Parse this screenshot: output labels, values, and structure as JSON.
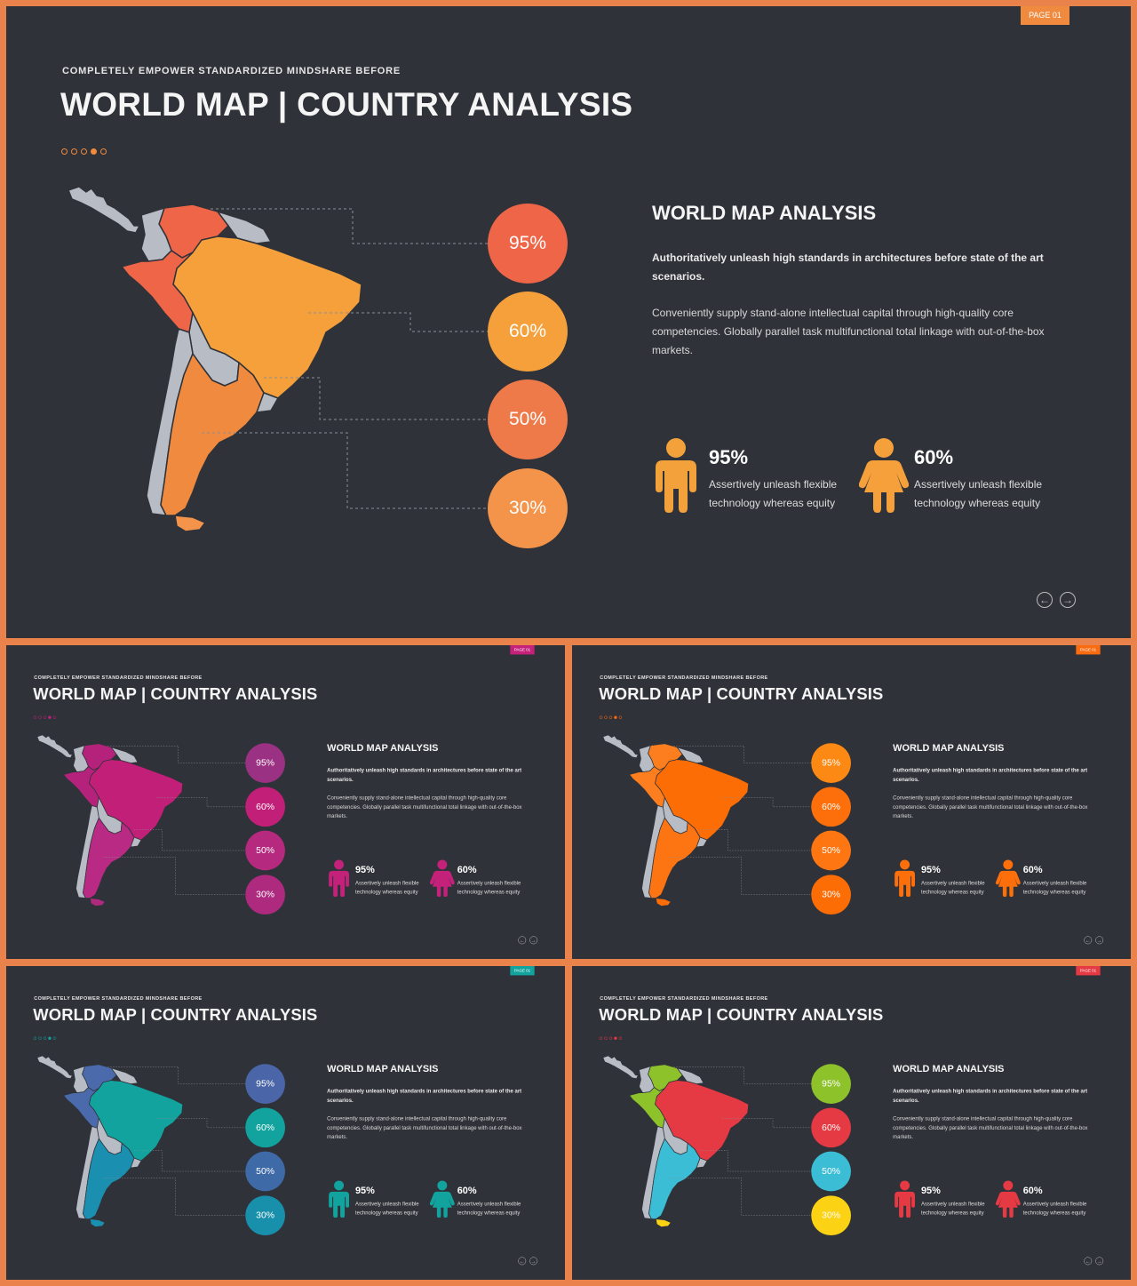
{
  "slides": [
    {
      "accent": "#ef8a3e",
      "colors": [
        "#ee6548",
        "#f5a03a",
        "#ef8a3e",
        "#f3944a"
      ],
      "circles": [
        "#ee6548",
        "#f6a03b",
        "#ee7a4a",
        "#f3944a"
      ],
      "male": "#f2a13b",
      "female": "#f5a03a"
    },
    {
      "accent": "#c4217a",
      "colors": [
        "#b4227c",
        "#c21f78",
        "#b92a84",
        "#ad2a7e"
      ],
      "circles": [
        "#9b3182",
        "#c21f78",
        "#b5297e",
        "#ad2a7e"
      ],
      "male": "#c4217a",
      "female": "#c4217a"
    },
    {
      "accent": "#fb6b10",
      "colors": [
        "#fd7e1e",
        "#fd6d05",
        "#fd7412",
        "#fd6d05"
      ],
      "circles": [
        "#fc8913",
        "#fd6f0a",
        "#fd7612",
        "#fd6d05"
      ],
      "male": "#fd6f0a",
      "female": "#fd6f0a"
    },
    {
      "accent": "#12a39e",
      "colors": [
        "#4a6aac",
        "#12a39e",
        "#1b8fb0",
        "#1b8fb0"
      ],
      "circles": [
        "#4a65a8",
        "#12a39e",
        "#3f6aa8",
        "#1990ab"
      ],
      "male": "#12a39e",
      "female": "#12a39e"
    },
    {
      "accent": "#e53943",
      "colors": [
        "#8dc22b",
        "#e53943",
        "#3bbdd6",
        "#fcd214"
      ],
      "circles": [
        "#8dc22b",
        "#e53943",
        "#3bbdd6",
        "#fcd214"
      ],
      "male": "#e53943",
      "female": "#e53943"
    }
  ],
  "content": {
    "tagline": "COMPLETELY  EMPOWER  STANDARDIZED  MINDSHARE  BEFORE",
    "title": "WORLD MAP | COUNTRY ANALYSIS",
    "page_badge": "PAGE 01",
    "section_title": "WORLD MAP ANALYSIS",
    "lead": "Authoritatively unleash high standards in architectures before state of the art scenarios.",
    "body": "Conveniently supply stand-alone intellectual capital through high-quality core competencies.  Globally parallel task multifunctional total linkage with out-of-the-box markets.",
    "circle_values": [
      "95%",
      "60%",
      "50%",
      "30%"
    ],
    "stats": [
      {
        "value": "95%",
        "desc": "Assertively unleash flexible technology whereas equity",
        "icon": "male-icon"
      },
      {
        "value": "60%",
        "desc": "Assertively unleash flexible technology whereas equity",
        "icon": "female-icon"
      }
    ],
    "nav": {
      "prev": "previous-arrow-icon",
      "next": "next-arrow-icon"
    }
  }
}
